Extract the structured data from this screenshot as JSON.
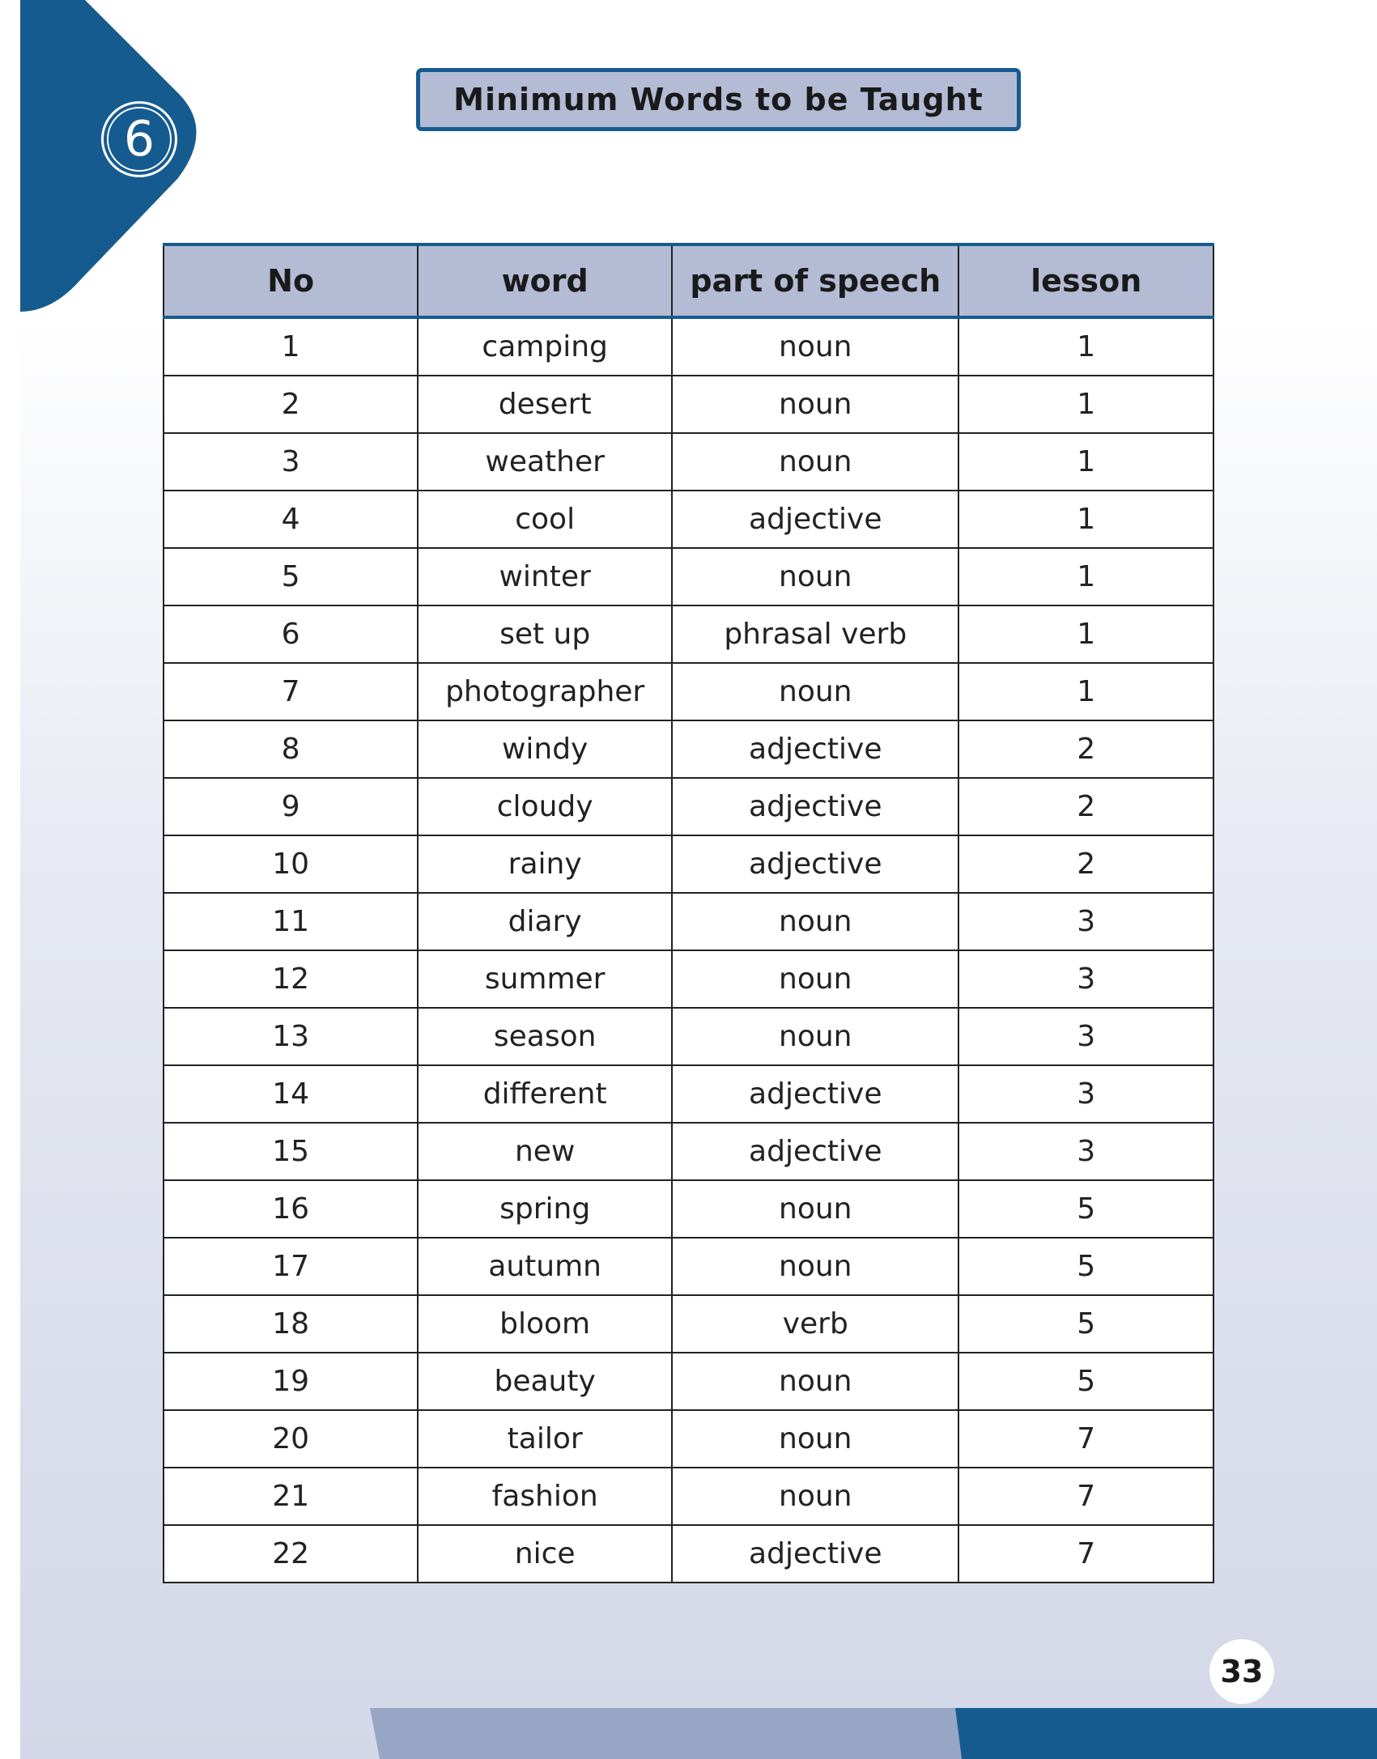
{
  "chapter_number": "6",
  "title": "Minimum Words to be Taught",
  "table": {
    "headers": [
      "No",
      "word",
      "part of speech",
      "lesson"
    ],
    "rows": [
      [
        "1",
        "camping",
        "noun",
        "1"
      ],
      [
        "2",
        "desert",
        "noun",
        "1"
      ],
      [
        "3",
        "weather",
        "noun",
        "1"
      ],
      [
        "4",
        "cool",
        "adjective",
        "1"
      ],
      [
        "5",
        "winter",
        "noun",
        "1"
      ],
      [
        "6",
        "set up",
        "phrasal verb",
        "1"
      ],
      [
        "7",
        "photographer",
        "noun",
        "1"
      ],
      [
        "8",
        "windy",
        "adjective",
        "2"
      ],
      [
        "9",
        "cloudy",
        "adjective",
        "2"
      ],
      [
        "10",
        "rainy",
        "adjective",
        "2"
      ],
      [
        "11",
        "diary",
        "noun",
        "3"
      ],
      [
        "12",
        "summer",
        "noun",
        "3"
      ],
      [
        "13",
        "season",
        "noun",
        "3"
      ],
      [
        "14",
        "different",
        "adjective",
        "3"
      ],
      [
        "15",
        "new",
        "adjective",
        "3"
      ],
      [
        "16",
        "spring",
        "noun",
        "5"
      ],
      [
        "17",
        "autumn",
        "noun",
        "5"
      ],
      [
        "18",
        "bloom",
        "verb",
        "5"
      ],
      [
        "19",
        "beauty",
        "noun",
        "5"
      ],
      [
        "20",
        "tailor",
        "noun",
        "7"
      ],
      [
        "21",
        "fashion",
        "noun",
        "7"
      ],
      [
        "22",
        "nice",
        "adjective",
        "7"
      ]
    ]
  },
  "page_number": "33",
  "colors": {
    "brand_blue": "#165b90",
    "header_fill": "#b4bbd5",
    "band_light": "#98a6c6"
  }
}
